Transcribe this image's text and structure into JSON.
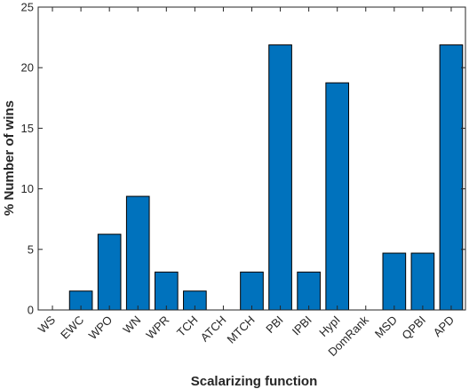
{
  "chart_data": {
    "type": "bar",
    "title": "",
    "xlabel": "Scalarizing function",
    "ylabel": "% Number of wins",
    "ylim": [
      0,
      25
    ],
    "yticks": [
      0,
      5,
      10,
      15,
      20,
      25
    ],
    "grid": false,
    "categories": [
      "WS",
      "EWC",
      "WPO",
      "WN",
      "WPR",
      "TCH",
      "ATCH",
      "MTCH",
      "PBI",
      "IPBI",
      "HypI",
      "DomRank",
      "MSD",
      "QPBI",
      "APD"
    ],
    "values": [
      0,
      1.56,
      6.25,
      9.38,
      3.13,
      1.56,
      0,
      3.13,
      21.88,
      3.13,
      18.75,
      0,
      4.69,
      4.69,
      21.88
    ],
    "bar_color": "#0072BD"
  }
}
